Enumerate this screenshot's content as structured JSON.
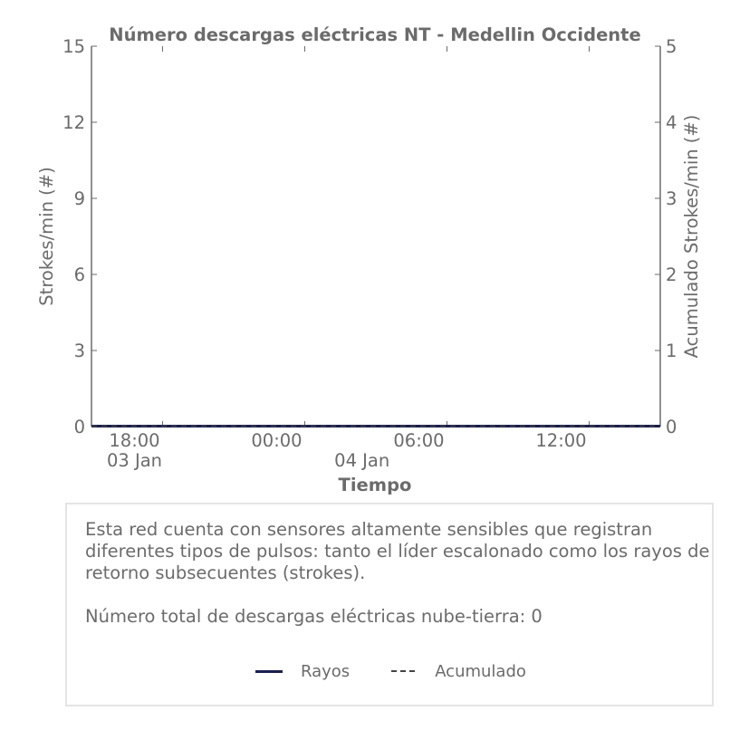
{
  "chart_data": {
    "type": "line",
    "title": "Número descargas eléctricas NT - Medellin Occidente",
    "xlabel": "Tiempo",
    "ylabel": "Strokes/min (#)",
    "y2label": "Acumulado Strokes/min (#)",
    "ylim": [
      0,
      15
    ],
    "y2lim": [
      0,
      5
    ],
    "yticks": [
      "0",
      "3",
      "6",
      "9",
      "12",
      "15"
    ],
    "y2ticks": [
      "0",
      "1",
      "2",
      "3",
      "4",
      "5"
    ],
    "xlim_hours": [
      -9.0,
      15.0
    ],
    "xticks": [
      {
        "hour": -6,
        "label": "18:00",
        "sublabel": "03 Jan"
      },
      {
        "hour": 0,
        "label": "00:00",
        "sublabel": ""
      },
      {
        "hour": 6,
        "label": "06:00",
        "sublabel": ""
      },
      {
        "hour": 12,
        "label": "12:00",
        "sublabel": ""
      }
    ],
    "date_labels": [
      {
        "hour": -6,
        "label": "03 Jan"
      },
      {
        "hour": 3.6,
        "label": "04 Jan"
      }
    ],
    "series": [
      {
        "name": "Rayos",
        "axis": "left",
        "style": "solid",
        "color": "#1a1f4e",
        "x_hours": [
          -9,
          15
        ],
        "values": [
          0,
          0
        ]
      },
      {
        "name": "Acumulado",
        "axis": "right",
        "style": "dashed",
        "color": "#444444",
        "x_hours": [
          -9,
          15
        ],
        "values": [
          0,
          0
        ]
      }
    ],
    "grid": false,
    "legend": "bottom"
  },
  "info": {
    "description": "Esta red cuenta con sensores altamente sensibles que registran diferentes tipos de pulsos: tanto el líder escalonado como los rayos de retorno subsecuentes (strokes).",
    "total_text": "Número total de descargas eléctricas nube-tierra: 0"
  },
  "legend": {
    "rayos_label": "Rayos",
    "acumulado_label": "Acumulado"
  },
  "colors": {
    "rayos": "#1a1f4e",
    "acumulado": "#444444",
    "text": "#6b6b6b",
    "axis": "#6b6b6b"
  }
}
